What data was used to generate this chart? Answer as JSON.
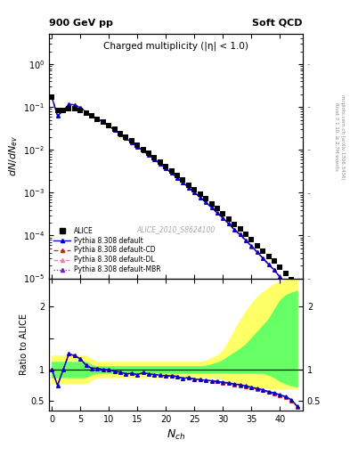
{
  "title_left": "900 GeV pp",
  "title_right": "Soft QCD",
  "main_title": "Charged multiplicity (|η| < 1.0)",
  "ylabel_main": "dN/dN_ev",
  "ylabel_ratio": "Ratio to ALICE",
  "xlabel": "N_ch",
  "right_label_top": "Rivet 3.1.10, ≥ 2.7M events",
  "right_label_bot": "mcplots.cern.ch [arXiv:1306.3436]",
  "watermark": "ALICE_2010_S8624100",
  "ylim_main": [
    1e-05,
    5.0
  ],
  "ylim_ratio": [
    0.35,
    2.45
  ],
  "xlim": [
    -0.5,
    44
  ],
  "alice_x": [
    0,
    1,
    2,
    3,
    4,
    5,
    6,
    7,
    8,
    9,
    10,
    11,
    12,
    13,
    14,
    15,
    16,
    17,
    18,
    19,
    20,
    21,
    22,
    23,
    24,
    25,
    26,
    27,
    28,
    29,
    30,
    31,
    32,
    33,
    34,
    35,
    36,
    37,
    38,
    39,
    40,
    41,
    42,
    43
  ],
  "alice_y": [
    0.17,
    0.083,
    0.083,
    0.092,
    0.092,
    0.082,
    0.072,
    0.062,
    0.052,
    0.044,
    0.036,
    0.03,
    0.024,
    0.02,
    0.016,
    0.013,
    0.01,
    0.0082,
    0.0065,
    0.0052,
    0.0041,
    0.0032,
    0.0025,
    0.002,
    0.0015,
    0.0012,
    0.00093,
    0.00072,
    0.00055,
    0.00042,
    0.00032,
    0.00024,
    0.00018,
    0.00014,
    0.000105,
    7.9e-05,
    5.9e-05,
    4.4e-05,
    3.3e-05,
    2.5e-05,
    1.8e-05,
    1.3e-05,
    9.5e-06,
    7e-06
  ],
  "ratio_default": [
    1.0,
    0.747,
    1.0,
    1.25,
    1.22,
    1.17,
    1.07,
    1.02,
    1.02,
    1.0,
    1.0,
    0.97,
    0.96,
    0.93,
    0.94,
    0.92,
    0.95,
    0.93,
    0.92,
    0.91,
    0.9,
    0.9,
    0.89,
    0.86,
    0.87,
    0.85,
    0.84,
    0.83,
    0.82,
    0.81,
    0.8,
    0.79,
    0.77,
    0.76,
    0.74,
    0.72,
    0.7,
    0.68,
    0.65,
    0.63,
    0.6,
    0.57,
    0.52,
    0.42
  ],
  "ratio_cd": [
    1.0,
    0.747,
    1.0,
    1.25,
    1.22,
    1.17,
    1.07,
    1.02,
    1.02,
    1.0,
    1.0,
    0.97,
    0.96,
    0.93,
    0.94,
    0.92,
    0.95,
    0.93,
    0.92,
    0.91,
    0.9,
    0.9,
    0.89,
    0.86,
    0.87,
    0.85,
    0.84,
    0.83,
    0.82,
    0.81,
    0.79,
    0.78,
    0.76,
    0.75,
    0.73,
    0.71,
    0.69,
    0.67,
    0.64,
    0.62,
    0.59,
    0.56,
    0.51,
    0.41
  ],
  "ratio_dl": [
    1.0,
    0.747,
    1.0,
    1.25,
    1.22,
    1.17,
    1.07,
    1.02,
    1.02,
    1.0,
    1.0,
    0.97,
    0.96,
    0.93,
    0.94,
    0.92,
    0.95,
    0.93,
    0.92,
    0.91,
    0.9,
    0.9,
    0.89,
    0.86,
    0.87,
    0.85,
    0.84,
    0.83,
    0.82,
    0.81,
    0.79,
    0.78,
    0.76,
    0.75,
    0.73,
    0.71,
    0.69,
    0.67,
    0.64,
    0.62,
    0.59,
    0.56,
    0.51,
    0.41
  ],
  "ratio_mbr": [
    1.0,
    0.747,
    1.0,
    1.25,
    1.22,
    1.17,
    1.07,
    1.02,
    1.02,
    1.0,
    1.0,
    0.97,
    0.96,
    0.93,
    0.94,
    0.92,
    0.95,
    0.93,
    0.92,
    0.91,
    0.9,
    0.9,
    0.89,
    0.86,
    0.87,
    0.85,
    0.84,
    0.83,
    0.82,
    0.81,
    0.79,
    0.78,
    0.76,
    0.75,
    0.73,
    0.71,
    0.69,
    0.67,
    0.64,
    0.62,
    0.59,
    0.56,
    0.51,
    0.41
  ],
  "green_band_lo": [
    0.88,
    0.88,
    0.88,
    0.88,
    0.88,
    0.88,
    0.88,
    0.93,
    0.95,
    0.95,
    0.95,
    0.95,
    0.95,
    0.95,
    0.95,
    0.95,
    0.95,
    0.95,
    0.95,
    0.95,
    0.95,
    0.95,
    0.95,
    0.95,
    0.95,
    0.95,
    0.95,
    0.95,
    0.95,
    0.95,
    0.95,
    0.95,
    0.95,
    0.95,
    0.95,
    0.95,
    0.95,
    0.95,
    0.92,
    0.88,
    0.82,
    0.78,
    0.75,
    0.73
  ],
  "green_band_hi": [
    1.12,
    1.12,
    1.12,
    1.12,
    1.12,
    1.12,
    1.12,
    1.07,
    1.05,
    1.05,
    1.05,
    1.05,
    1.05,
    1.05,
    1.05,
    1.05,
    1.05,
    1.05,
    1.05,
    1.05,
    1.05,
    1.05,
    1.05,
    1.05,
    1.05,
    1.05,
    1.05,
    1.06,
    1.08,
    1.11,
    1.15,
    1.21,
    1.27,
    1.33,
    1.4,
    1.5,
    1.6,
    1.7,
    1.8,
    1.95,
    2.1,
    2.18,
    2.22,
    2.25
  ],
  "yellow_band_lo": [
    0.78,
    0.78,
    0.78,
    0.78,
    0.78,
    0.78,
    0.78,
    0.84,
    0.88,
    0.88,
    0.88,
    0.88,
    0.88,
    0.88,
    0.88,
    0.88,
    0.88,
    0.88,
    0.88,
    0.88,
    0.88,
    0.88,
    0.88,
    0.88,
    0.88,
    0.88,
    0.88,
    0.88,
    0.88,
    0.88,
    0.85,
    0.82,
    0.79,
    0.77,
    0.75,
    0.74,
    0.73,
    0.72,
    0.71,
    0.7,
    0.7,
    0.7,
    0.7,
    0.7
  ],
  "yellow_band_hi": [
    1.22,
    1.22,
    1.22,
    1.22,
    1.22,
    1.22,
    1.22,
    1.16,
    1.12,
    1.12,
    1.12,
    1.12,
    1.12,
    1.12,
    1.12,
    1.12,
    1.12,
    1.12,
    1.12,
    1.12,
    1.12,
    1.12,
    1.12,
    1.12,
    1.12,
    1.12,
    1.12,
    1.14,
    1.18,
    1.22,
    1.3,
    1.45,
    1.62,
    1.78,
    1.92,
    2.05,
    2.15,
    2.23,
    2.3,
    2.36,
    2.4,
    2.42,
    2.43,
    2.43
  ],
  "color_alice": "#000000",
  "color_default": "#0000cc",
  "color_cd": "#cc2222",
  "color_dl": "#dd88aa",
  "color_mbr": "#7722aa"
}
